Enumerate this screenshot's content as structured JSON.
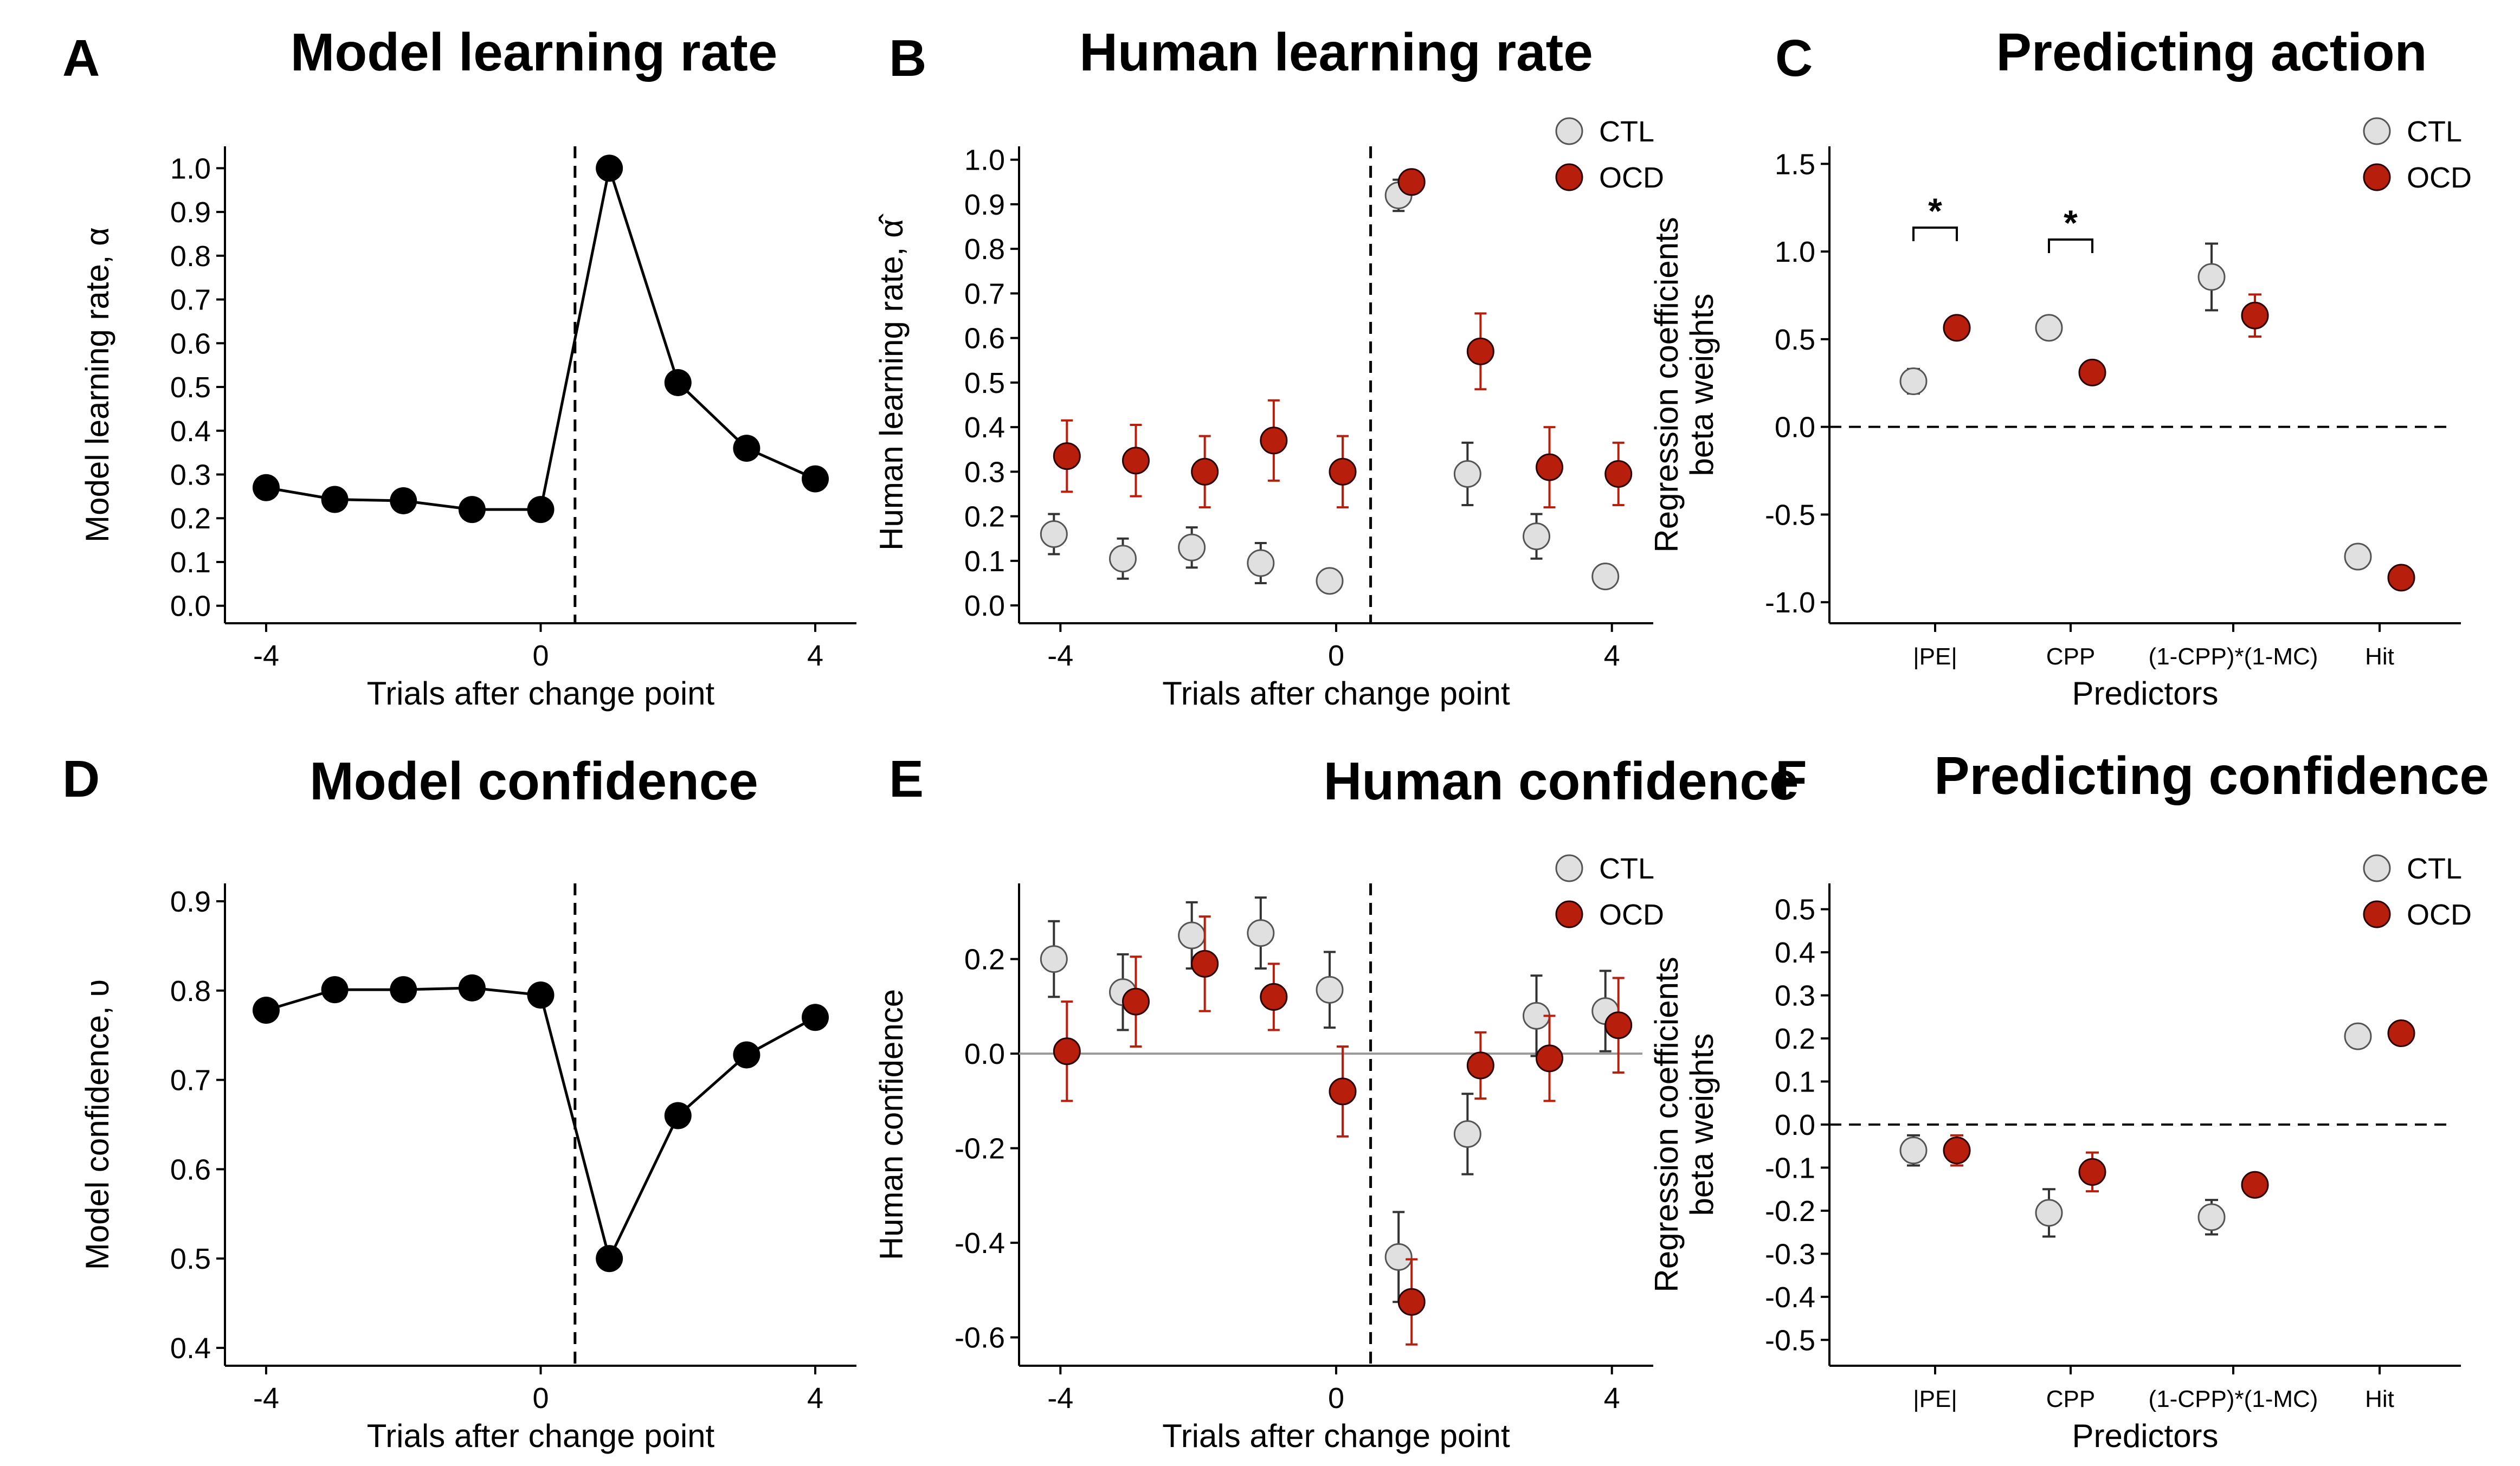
{
  "colors": {
    "ctl": "#e0e0e0",
    "ocd": "#b81e0c",
    "model": "#000000",
    "ctl_err": "#333333",
    "ocd_err": "#b81e0c"
  },
  "chart_data": [
    {
      "panel": "A",
      "type": "line",
      "title": "Model learning rate",
      "xlabel": "Trials after change point",
      "ylabel": "Model learning rate, α",
      "xlim": [
        -4.6,
        4.6
      ],
      "ylim": [
        -0.04,
        1.05
      ],
      "xticks": [
        -4,
        0,
        4
      ],
      "xticklabels": [
        "-4",
        "0",
        "4"
      ],
      "yticks": [
        0,
        0.1,
        0.2,
        0.3,
        0.4,
        0.5,
        0.6,
        0.7,
        0.8,
        0.9,
        1.0
      ],
      "yticklabels": [
        "0.0",
        "0.1",
        "0.2",
        "0.3",
        "0.4",
        "0.5",
        "0.6",
        "0.7",
        "0.8",
        "0.9",
        "1.0"
      ],
      "vline": 0.5,
      "series": [
        {
          "x": [
            -4,
            -3,
            -2,
            -1,
            0,
            1,
            2,
            3,
            4
          ],
          "y": [
            0.27,
            0.243,
            0.24,
            0.22,
            0.22,
            1.0,
            0.51,
            0.36,
            0.29
          ]
        }
      ]
    },
    {
      "panel": "B",
      "type": "scatter",
      "title": "Human learning rate",
      "xlabel": "Trials after change point",
      "ylabel": "Human learning rate, α̂",
      "xlim": [
        -4.6,
        4.6
      ],
      "ylim": [
        -0.04,
        1.03
      ],
      "xticks": [
        -4,
        0,
        4
      ],
      "xticklabels": [
        "-4",
        "0",
        "4"
      ],
      "yticks": [
        0,
        0.1,
        0.2,
        0.3,
        0.4,
        0.5,
        0.6,
        0.7,
        0.8,
        0.9,
        1.0
      ],
      "yticklabels": [
        "0.0",
        "0.1",
        "0.2",
        "0.3",
        "0.4",
        "0.5",
        "0.6",
        "0.7",
        "0.8",
        "0.9",
        "1.0"
      ],
      "vline": 0.5,
      "legend": [
        "CTL",
        "OCD"
      ],
      "series": [
        {
          "name": "CTL",
          "x": [
            -4,
            -3,
            -2,
            -1,
            0,
            1,
            2,
            3,
            4
          ],
          "y": [
            0.16,
            0.105,
            0.13,
            0.095,
            0.055,
            0.92,
            0.295,
            0.155,
            0.065
          ],
          "err": [
            0.045,
            0.045,
            0.045,
            0.045,
            0.025,
            0.035,
            0.07,
            0.05,
            0.025
          ]
        },
        {
          "name": "OCD",
          "x": [
            -4,
            -3,
            -2,
            -1,
            0,
            1,
            2,
            3,
            4
          ],
          "y": [
            0.335,
            0.325,
            0.3,
            0.37,
            0.3,
            0.95,
            0.57,
            0.31,
            0.295
          ],
          "err": [
            0.08,
            0.08,
            0.08,
            0.09,
            0.08,
            0.015,
            0.085,
            0.09,
            0.07
          ]
        }
      ]
    },
    {
      "panel": "C",
      "type": "scatter",
      "title": "Predicting action",
      "xlabel": "Predictors",
      "ylabel": "Regression coefficients beta weights",
      "ylim": [
        -1.12,
        1.6
      ],
      "categories": [
        "|PE|",
        "CPP",
        "(1-CPP)*(1-MC)",
        "Hit"
      ],
      "yticks": [
        -1.0,
        -0.5,
        0.0,
        0.5,
        1.0,
        1.5
      ],
      "yticklabels": [
        "-1.0",
        "-0.5",
        "0.0",
        "0.5",
        "1.0",
        "1.5"
      ],
      "hline": 0,
      "significance": [
        "*",
        "*"
      ],
      "legend": [
        "CTL",
        "OCD"
      ],
      "series": [
        {
          "name": "CTL",
          "values": [
            0.26,
            0.565,
            0.855,
            -0.74
          ],
          "err": [
            0.07,
            0.03,
            0.19,
            0.02
          ]
        },
        {
          "name": "OCD",
          "values": [
            0.565,
            0.31,
            0.635,
            -0.86
          ],
          "err": [
            0.06,
            0.06,
            0.12,
            0.02
          ]
        }
      ]
    },
    {
      "panel": "D",
      "type": "line",
      "title": "Model confidence",
      "xlabel": "Trials after change point",
      "ylabel": "Model confidence, υ",
      "xlim": [
        -4.6,
        4.6
      ],
      "ylim": [
        0.38,
        0.92
      ],
      "xticks": [
        -4,
        0,
        4
      ],
      "xticklabels": [
        "-4",
        "0",
        "4"
      ],
      "yticks": [
        0.4,
        0.5,
        0.6,
        0.7,
        0.8,
        0.9
      ],
      "yticklabels": [
        "0.4",
        "0.5",
        "0.6",
        "0.7",
        "0.8",
        "0.9"
      ],
      "vline": 0.5,
      "series": [
        {
          "x": [
            -4,
            -3,
            -2,
            -1,
            0,
            1,
            2,
            3,
            4
          ],
          "y": [
            0.778,
            0.801,
            0.801,
            0.803,
            0.795,
            0.5,
            0.66,
            0.728,
            0.77
          ]
        }
      ]
    },
    {
      "panel": "E",
      "type": "scatter",
      "title": "Human confidence",
      "xlabel": "Trials after change point",
      "ylabel": "Human confidence",
      "xlim": [
        -4.6,
        4.6
      ],
      "ylim": [
        -0.66,
        0.36
      ],
      "xticks": [
        -4,
        0,
        4
      ],
      "xticklabels": [
        "-4",
        "0",
        "4"
      ],
      "yticks": [
        -0.6,
        -0.4,
        -0.2,
        0.0,
        0.2
      ],
      "yticklabels": [
        "-0.6",
        "-0.4",
        "-0.2",
        "0.0",
        "0.2"
      ],
      "vline": 0.5,
      "hline": 0,
      "legend": [
        "CTL",
        "OCD"
      ],
      "series": [
        {
          "name": "CTL",
          "x": [
            -4,
            -3,
            -2,
            -1,
            0,
            1,
            2,
            3,
            4
          ],
          "y": [
            0.2,
            0.13,
            0.25,
            0.255,
            0.135,
            -0.43,
            -0.17,
            0.08,
            0.09
          ],
          "err": [
            0.08,
            0.08,
            0.07,
            0.075,
            0.08,
            0.095,
            0.085,
            0.085,
            0.085
          ]
        },
        {
          "name": "OCD",
          "x": [
            -4,
            -3,
            -2,
            -1,
            0,
            1,
            2,
            3,
            4
          ],
          "y": [
            0.005,
            0.11,
            0.19,
            0.12,
            -0.08,
            -0.525,
            -0.025,
            -0.01,
            0.06
          ],
          "err": [
            0.105,
            0.095,
            0.1,
            0.07,
            0.095,
            0.09,
            0.07,
            0.09,
            0.1
          ]
        }
      ]
    },
    {
      "panel": "F",
      "type": "scatter",
      "title": "Predicting confidence",
      "xlabel": "Predictors",
      "ylabel": "Regression coefficients beta weights",
      "ylim": [
        -0.56,
        0.56
      ],
      "categories": [
        "|PE|",
        "CPP",
        "(1-CPP)*(1-MC)",
        "Hit"
      ],
      "yticks": [
        -0.5,
        -0.4,
        -0.3,
        -0.2,
        -0.1,
        0.0,
        0.1,
        0.2,
        0.3,
        0.4,
        0.5
      ],
      "yticklabels": [
        "-0.5",
        "-0.4",
        "-0.3",
        "-0.2",
        "-0.1",
        "0.0",
        "0.1",
        "0.2",
        "0.3",
        "0.4",
        "0.5"
      ],
      "hline": 0,
      "legend": [
        "CTL",
        "OCD"
      ],
      "series": [
        {
          "name": "CTL",
          "values": [
            -0.06,
            -0.205,
            -0.215,
            0.205
          ],
          "err": [
            0.035,
            0.055,
            0.04,
            0.025
          ]
        },
        {
          "name": "OCD",
          "values": [
            -0.06,
            -0.11,
            -0.14,
            0.212
          ],
          "err": [
            0.035,
            0.045,
            0.025,
            0.022
          ]
        }
      ]
    }
  ]
}
